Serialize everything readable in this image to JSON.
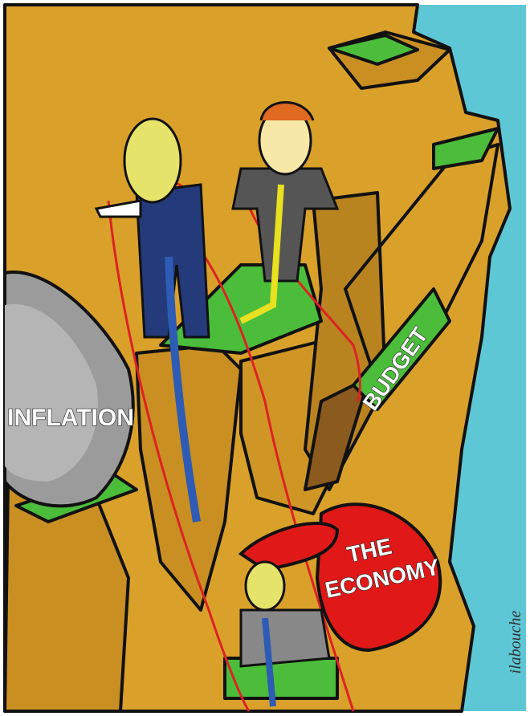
{
  "labels": {
    "boulder": "INFLATION",
    "ledge": "BUDGET",
    "sack_line1": "THE",
    "sack_line2": "ECONOMY"
  },
  "signature": "ilabouche"
}
